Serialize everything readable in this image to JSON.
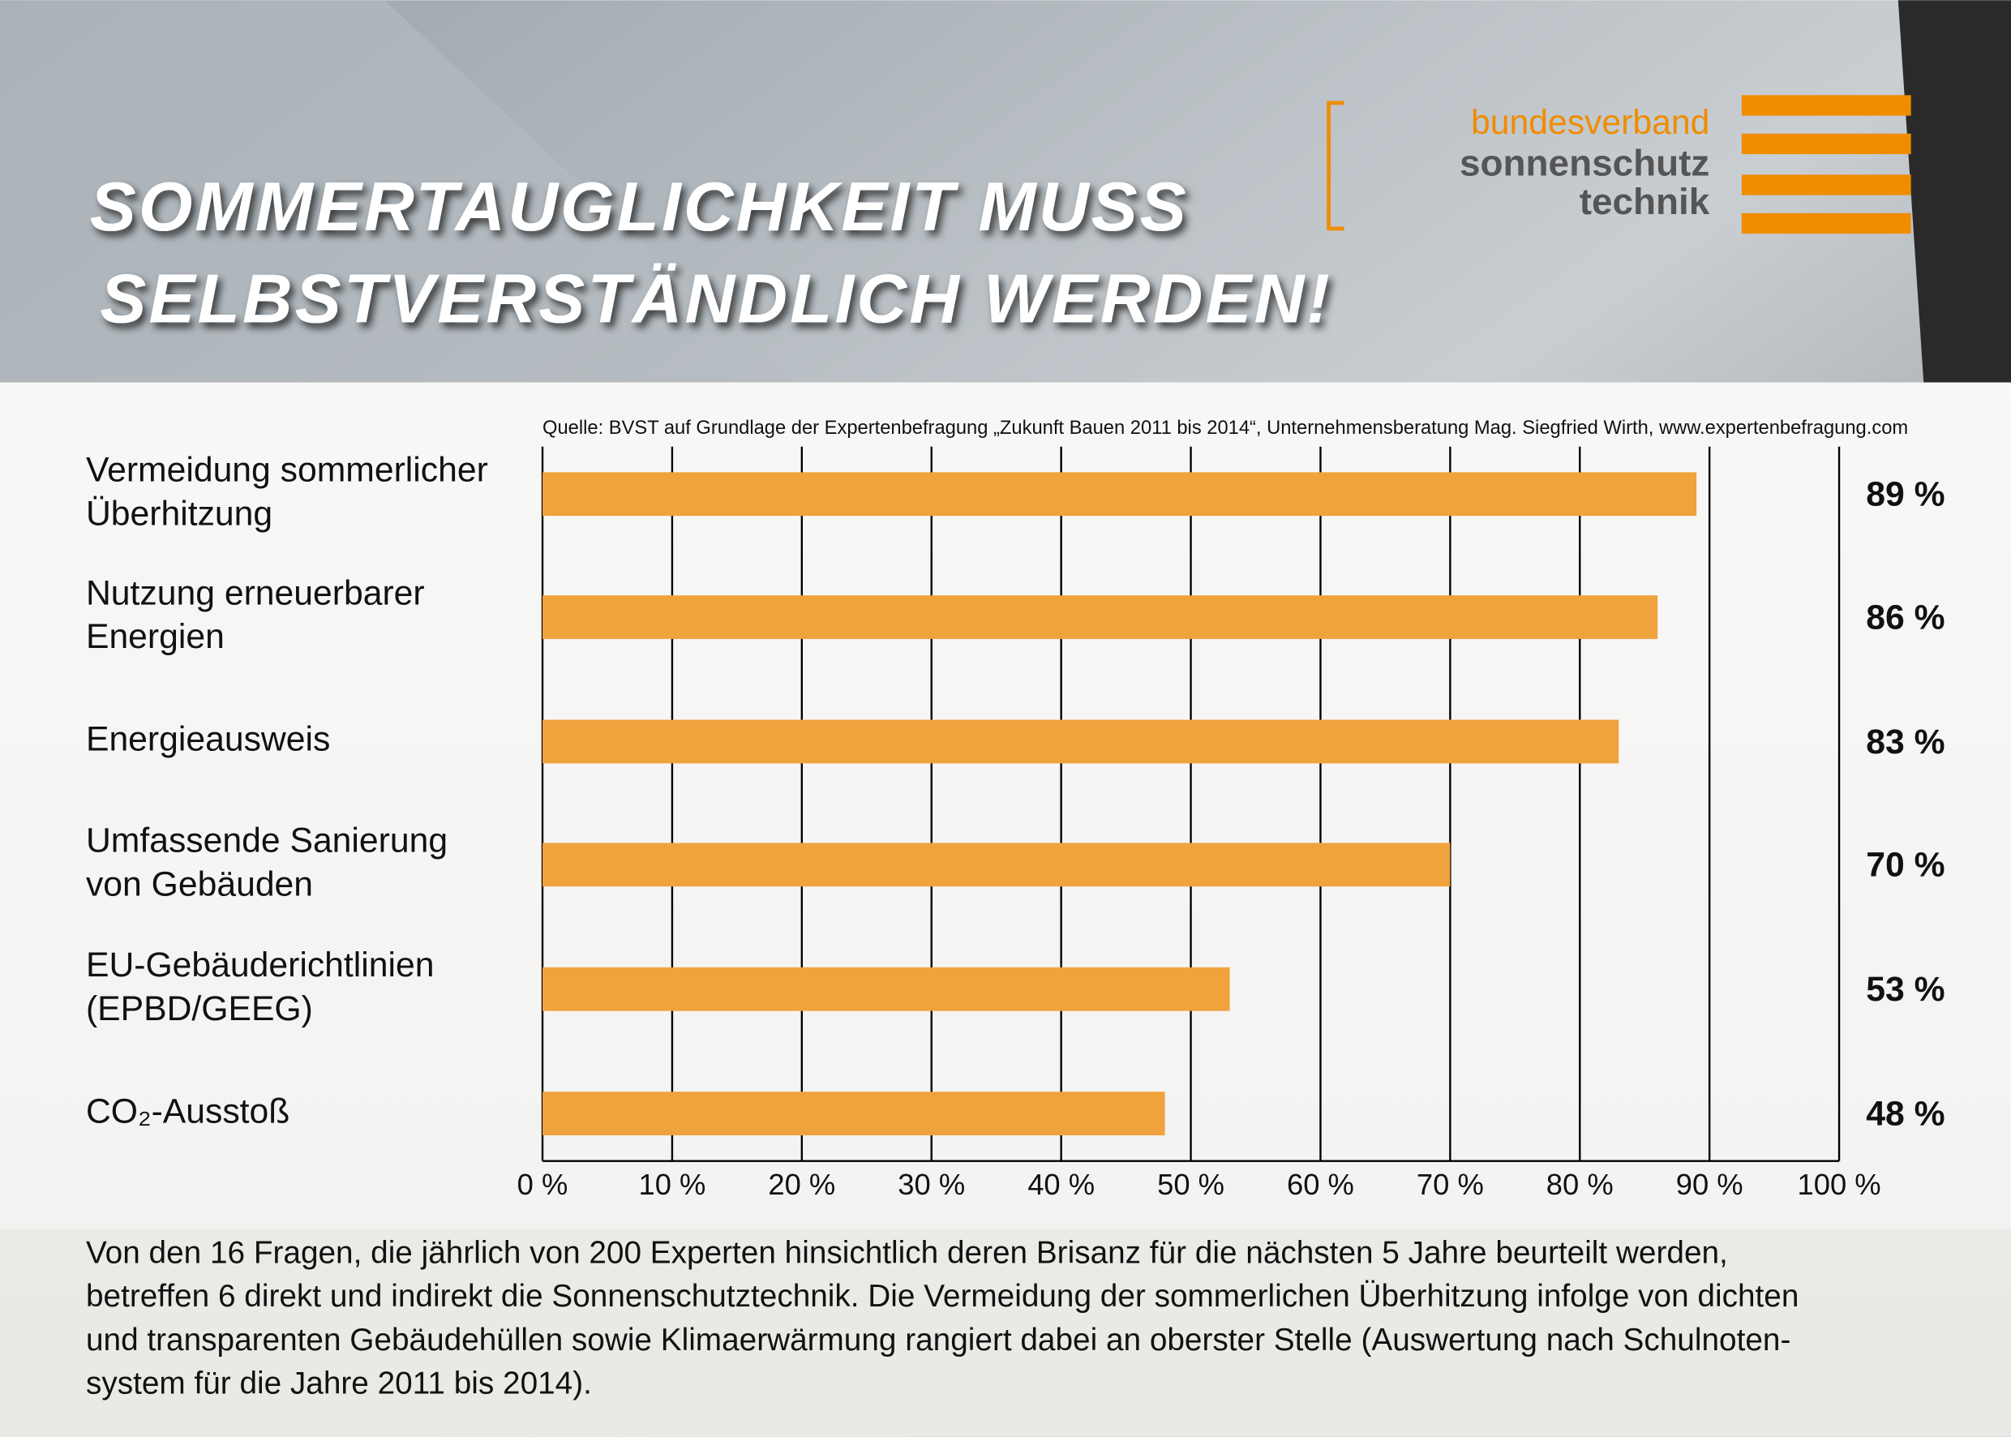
{
  "header": {
    "title_lines": [
      "SOMMERTAUGLICHKEIT MUSS",
      "SELBSTVERSTÄNDLICH WERDEN!"
    ],
    "logo": [
      "bundesverband",
      "sonnenschutz",
      "technik"
    ]
  },
  "chart_data": {
    "type": "barh",
    "source": "Quelle: BVST auf Grundlage der Expertenbefragung „Zukunft Bauen 2011 bis 2014“, Unternehmensberatung Mag. Siegfried Wirth, www.expertenbefragung.com",
    "categories": [
      [
        "Vermeidung sommerlicher",
        "Überhitzung"
      ],
      [
        "Nutzung erneuerbarer",
        "Energien"
      ],
      [
        "Energieausweis"
      ],
      [
        "Umfassende Sanierung",
        "von Gebäuden"
      ],
      [
        "EU-Gebäuderichtlinien",
        "(EPBD/GEEG)"
      ],
      [
        "CO₂-Ausstoß"
      ]
    ],
    "values": [
      89,
      86,
      83,
      70,
      53,
      48
    ],
    "value_labels": [
      "89 %",
      "86 %",
      "83 %",
      "70 %",
      "53 %",
      "48 %"
    ],
    "color": "#f0a23c",
    "xlim": [
      0,
      100
    ],
    "xticks": [
      {
        "value": 0,
        "label": "0 %"
      },
      {
        "value": 10,
        "label": "10 %"
      },
      {
        "value": 20,
        "label": "20 %"
      },
      {
        "value": 30,
        "label": "30 %"
      },
      {
        "value": 40,
        "label": "40 %"
      },
      {
        "value": 50,
        "label": "50 %"
      },
      {
        "value": 60,
        "label": "60 %"
      },
      {
        "value": 70,
        "label": "70 %"
      },
      {
        "value": 80,
        "label": "80 %"
      },
      {
        "value": 90,
        "label": "90 %"
      },
      {
        "value": 100,
        "label": "100 %"
      }
    ],
    "grid": true
  },
  "footer": {
    "lines": [
      "Von den 16 Fragen, die jährlich von 200 Experten hinsichtlich deren Brisanz für die nächsten 5 Jahre beurteilt werden,",
      "betreffen 6 direkt und indirekt die Sonnenschutztechnik. Die Vermeidung  der sommerlichen Überhitzung infolge von dichten",
      "und transparenten Gebäudehüllen sowie Klimaerwärmung rangiert dabei an oberster Stelle (Auswertung nach Schulnoten-",
      "system für die Jahre 2011 bis 2014)."
    ]
  }
}
